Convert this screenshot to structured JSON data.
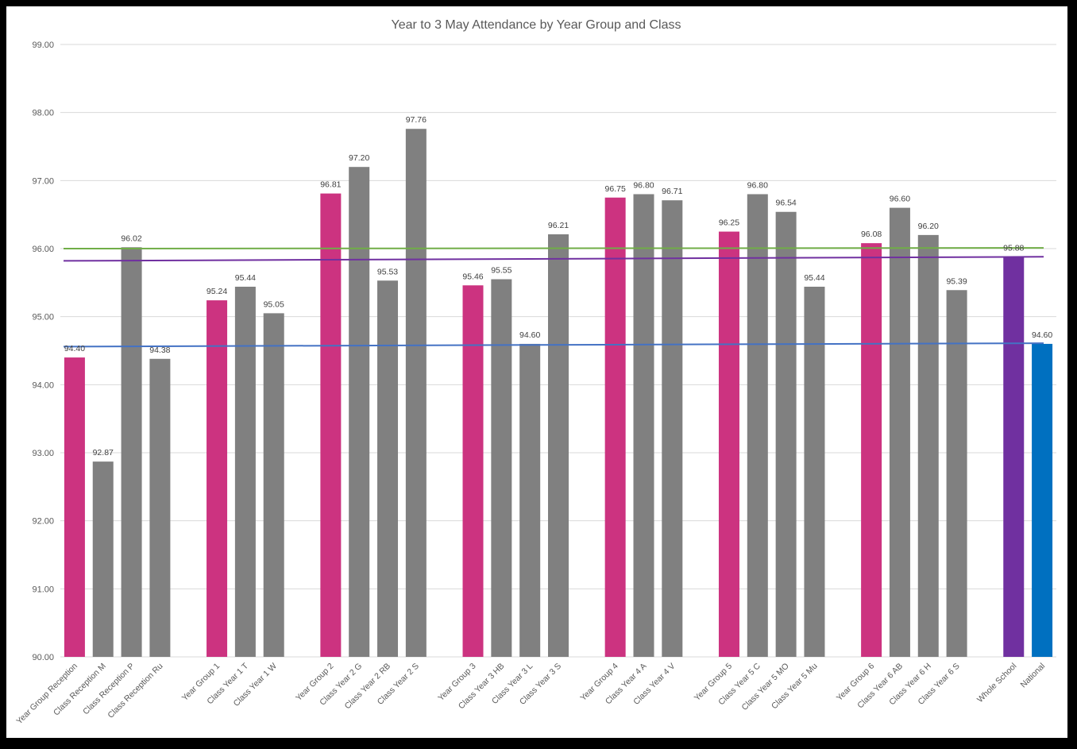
{
  "chart_data": {
    "type": "bar",
    "title": "Year to 3 May Attendance by Year Group and Class",
    "xlabel": "",
    "ylabel": "",
    "ylim": [
      90,
      99
    ],
    "yticks": [
      "90.00",
      "91.00",
      "92.00",
      "93.00",
      "94.00",
      "95.00",
      "96.00",
      "97.00",
      "98.00",
      "99.00"
    ],
    "grid": true,
    "legend": "none",
    "colors": {
      "year_group": "#cc3380",
      "class": "#808080",
      "whole_school": "#7030a0",
      "national": "#0070c0",
      "line_green": "#70ad47",
      "line_purple": "#7030a0",
      "line_blue": "#4472c4"
    },
    "bars": [
      {
        "label": "Year Group Reception",
        "value": 94.4,
        "display": "94.40",
        "kind": "year_group"
      },
      {
        "label": "Class Reception M",
        "value": 92.87,
        "display": "92.87",
        "kind": "class"
      },
      {
        "label": "Class Reception P",
        "value": 96.02,
        "display": "96.02",
        "kind": "class"
      },
      {
        "label": "Class Reception Ru",
        "value": 94.38,
        "display": "94.38",
        "kind": "class"
      },
      {
        "label": "",
        "value": null,
        "display": "",
        "kind": "gap"
      },
      {
        "label": "Year Group 1",
        "value": 95.24,
        "display": "95.24",
        "kind": "year_group"
      },
      {
        "label": "Class Year 1 T",
        "value": 95.44,
        "display": "95.44",
        "kind": "class"
      },
      {
        "label": "Class Year 1 W",
        "value": 95.05,
        "display": "95.05",
        "kind": "class"
      },
      {
        "label": "",
        "value": null,
        "display": "",
        "kind": "gap"
      },
      {
        "label": "Year Group 2",
        "value": 96.81,
        "display": "96.81",
        "kind": "year_group"
      },
      {
        "label": "Class Year 2 G",
        "value": 97.2,
        "display": "97.20",
        "kind": "class"
      },
      {
        "label": "Class Year 2 RB",
        "value": 95.53,
        "display": "95.53",
        "kind": "class"
      },
      {
        "label": "Class Year 2 S",
        "value": 97.76,
        "display": "97.76",
        "kind": "class"
      },
      {
        "label": "",
        "value": null,
        "display": "",
        "kind": "gap"
      },
      {
        "label": "Year Group 3",
        "value": 95.46,
        "display": "95.46",
        "kind": "year_group"
      },
      {
        "label": "Class Year 3 HB",
        "value": 95.55,
        "display": "95.55",
        "kind": "class"
      },
      {
        "label": "Class Year 3 L",
        "value": 94.6,
        "display": "94.60",
        "kind": "class"
      },
      {
        "label": "Class Year 3 S",
        "value": 96.21,
        "display": "96.21",
        "kind": "class"
      },
      {
        "label": "",
        "value": null,
        "display": "",
        "kind": "gap"
      },
      {
        "label": "Year Group 4",
        "value": 96.75,
        "display": "96.75",
        "kind": "year_group"
      },
      {
        "label": "Class Year 4 A",
        "value": 96.8,
        "display": "96.80",
        "kind": "class"
      },
      {
        "label": "Class Year 4 V",
        "value": 96.71,
        "display": "96.71",
        "kind": "class"
      },
      {
        "label": "",
        "value": null,
        "display": "",
        "kind": "gap"
      },
      {
        "label": "Year Group 5",
        "value": 96.25,
        "display": "96.25",
        "kind": "year_group"
      },
      {
        "label": "Class Year 5 C",
        "value": 96.8,
        "display": "96.80",
        "kind": "class"
      },
      {
        "label": "Class Year 5 MO",
        "value": 96.54,
        "display": "96.54",
        "kind": "class"
      },
      {
        "label": "Class Year 5 Mu",
        "value": 95.44,
        "display": "95.44",
        "kind": "class"
      },
      {
        "label": "",
        "value": null,
        "display": "",
        "kind": "gap"
      },
      {
        "label": "Year Group 6",
        "value": 96.08,
        "display": "96.08",
        "kind": "year_group"
      },
      {
        "label": "Class Year 6 AB",
        "value": 96.6,
        "display": "96.60",
        "kind": "class"
      },
      {
        "label": "Class Year 6 H",
        "value": 96.2,
        "display": "96.20",
        "kind": "class"
      },
      {
        "label": "Class Year 6 S",
        "value": 95.39,
        "display": "95.39",
        "kind": "class"
      },
      {
        "label": "",
        "value": null,
        "display": "",
        "kind": "gap"
      },
      {
        "label": "Whole School",
        "value": 95.88,
        "display": "95.88",
        "kind": "whole_school"
      },
      {
        "label": "National",
        "value": 94.6,
        "display": "94.60",
        "kind": "national"
      }
    ],
    "reference_lines": [
      {
        "color_key": "line_green",
        "y_start": 96.0,
        "y_end": 96.01
      },
      {
        "color_key": "line_purple",
        "y_start": 95.82,
        "y_end": 95.88
      },
      {
        "color_key": "line_blue",
        "y_start": 94.56,
        "y_end": 94.61
      }
    ]
  }
}
